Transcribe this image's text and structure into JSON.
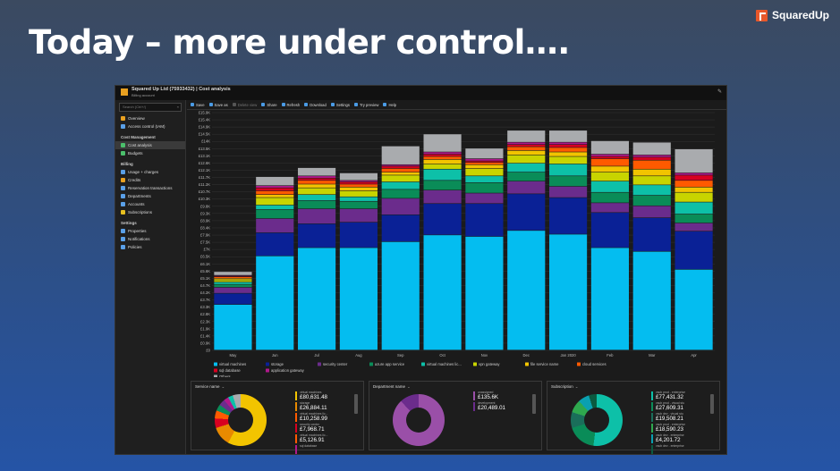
{
  "slide": {
    "title": "Today – more under control…."
  },
  "logo": {
    "text": "SquaredUp",
    "color": "#e8572a"
  },
  "window": {
    "title": "Squared Up Ltd (75933432) | Cost analysis",
    "subtitle": "Billing account",
    "pin_icon": "pin-icon"
  },
  "sidebar": {
    "search_placeholder": "Search (Ctrl+/)",
    "items": [
      {
        "label": "Overview",
        "icon": "overview-icon",
        "color": "#e8a020"
      },
      {
        "label": "Access control (IAM)",
        "icon": "people-icon",
        "color": "#5aa0e8"
      },
      {
        "section": "Cost Management"
      },
      {
        "label": "Cost analysis",
        "icon": "cost-analysis-icon",
        "color": "#4bbf6b",
        "active": true
      },
      {
        "label": "Budgets",
        "icon": "budgets-icon",
        "color": "#4bbf6b"
      },
      {
        "section": "Billing"
      },
      {
        "label": "Usage + charges",
        "icon": "usage-icon",
        "color": "#5aa0e8"
      },
      {
        "label": "Credits",
        "icon": "credits-icon",
        "color": "#e8a020"
      },
      {
        "label": "Reservation transactions",
        "icon": "reservation-icon",
        "color": "#5aa0e8"
      },
      {
        "label": "Departments",
        "icon": "departments-icon",
        "color": "#5aa0e8"
      },
      {
        "label": "Accounts",
        "icon": "accounts-icon",
        "color": "#5aa0e8"
      },
      {
        "label": "Subscriptions",
        "icon": "key-icon",
        "color": "#e8c020"
      },
      {
        "section": "Settings"
      },
      {
        "label": "Properties",
        "icon": "properties-icon",
        "color": "#5aa0e8"
      },
      {
        "label": "Notifications",
        "icon": "notifications-icon",
        "color": "#5aa0e8"
      },
      {
        "label": "Policies",
        "icon": "policies-icon",
        "color": "#5aa0e8"
      }
    ]
  },
  "toolbar": {
    "buttons": [
      {
        "label": "Save",
        "icon": "save-icon"
      },
      {
        "label": "Save as",
        "icon": "save-as-icon"
      },
      {
        "label": "Delete view",
        "icon": "delete-icon",
        "disabled": true
      },
      {
        "label": "Share",
        "icon": "share-icon"
      },
      {
        "label": "Refresh",
        "icon": "refresh-icon"
      },
      {
        "label": "Download",
        "icon": "download-icon"
      },
      {
        "label": "Settings",
        "icon": "gear-icon"
      },
      {
        "label": "Try preview",
        "icon": "preview-icon"
      },
      {
        "label": "Help",
        "icon": "help-icon"
      }
    ]
  },
  "chart_data": {
    "type": "bar",
    "stacked": true,
    "categories": [
      "May",
      "Jun",
      "Jul",
      "Aug",
      "Sep",
      "Oct",
      "Nov",
      "Dec",
      "Jan 2020",
      "Feb",
      "Mar",
      "Apr"
    ],
    "yticks": [
      "£0",
      "£0.9K",
      "£1.4K",
      "£1.9K",
      "£2.3K",
      "£2.8K",
      "£3.3K",
      "£3.7K",
      "£4.2K",
      "£4.7K",
      "£5.1K",
      "£5.6K",
      "£6.1K",
      "£6.5K",
      "£7K",
      "£7.5K",
      "£7.9K",
      "£8.4K",
      "£8.9K",
      "£9.3K",
      "£9.8K",
      "£10.3K",
      "£10.7K",
      "£11.2K",
      "£11.7K",
      "£12.1K",
      "£12.6K",
      "£13.1K",
      "£13.5K",
      "£14K",
      "£14.5K",
      "£14.9K",
      "£15.4K",
      "£15.9K"
    ],
    "ylim": [
      0,
      15900
    ],
    "grid": true,
    "legend_position": "bottom",
    "series": [
      {
        "name": "virtual machines",
        "color": "#04bdf0",
        "values": [
          3050,
          6300,
          6850,
          6850,
          7250,
          7700,
          7600,
          8000,
          7750,
          6850,
          6600,
          5400
        ]
      },
      {
        "name": "storage",
        "color": "#0a2196",
        "values": [
          750,
          1550,
          1600,
          1700,
          1800,
          2100,
          2200,
          2450,
          2450,
          2350,
          2250,
          2550
        ]
      },
      {
        "name": "security center",
        "color": "#6b2c8c",
        "values": [
          400,
          950,
          1000,
          900,
          1100,
          900,
          700,
          850,
          750,
          650,
          800,
          550
        ]
      },
      {
        "name": "azure app service",
        "color": "#0a8c58",
        "values": [
          200,
          600,
          550,
          500,
          600,
          650,
          700,
          600,
          700,
          700,
          700,
          600
        ]
      },
      {
        "name": "virtual machines lic...",
        "color": "#0dc0a8",
        "values": [
          150,
          300,
          400,
          300,
          500,
          750,
          450,
          600,
          800,
          750,
          700,
          800
        ]
      },
      {
        "name": "vpn gateway",
        "color": "#c8d400",
        "values": [
          150,
          500,
          450,
          400,
          450,
          350,
          500,
          550,
          500,
          600,
          600,
          650
        ]
      },
      {
        "name": "file service name",
        "color": "#f2c400",
        "values": [
          100,
          200,
          250,
          250,
          200,
          300,
          250,
          300,
          300,
          400,
          450,
          350
        ]
      },
      {
        "name": "cloud services",
        "color": "#ff5a00",
        "values": [
          100,
          250,
          250,
          200,
          250,
          200,
          150,
          250,
          300,
          500,
          600,
          450
        ]
      },
      {
        "name": "sql database",
        "color": "#d80020",
        "values": [
          50,
          200,
          150,
          150,
          150,
          150,
          100,
          150,
          200,
          150,
          200,
          350
        ]
      },
      {
        "name": "application gateway",
        "color": "#b0188c",
        "values": [
          50,
          150,
          150,
          100,
          100,
          150,
          150,
          150,
          150,
          150,
          150,
          150
        ]
      },
      {
        "name": "Others",
        "color": "#a9abae",
        "values": [
          250,
          600,
          550,
          500,
          1250,
          1200,
          700,
          800,
          800,
          900,
          850,
          1600
        ]
      }
    ]
  },
  "panels": [
    {
      "title": "Service name",
      "donut": [
        [
          "#f2c400",
          58
        ],
        [
          "#e88a00",
          12
        ],
        [
          "#d80020",
          6
        ],
        [
          "#ff5a00",
          5
        ],
        [
          "#0a8c58",
          4
        ],
        [
          "#6b2c8c",
          4
        ],
        [
          "#b0188c",
          3
        ],
        [
          "#0dc0a8",
          3
        ],
        [
          "#a9abae",
          5
        ]
      ],
      "items": [
        {
          "name": "virtual machines",
          "value": "£80,631.48",
          "color": "#f2c400"
        },
        {
          "name": "storage",
          "value": "£26,884.11",
          "color": "#e88a00"
        },
        {
          "name": "virtual machines lic...",
          "value": "£10,258.99",
          "color": "#ff5a00"
        },
        {
          "name": "security center",
          "value": "£7,968.71",
          "color": "#d80020"
        },
        {
          "name": "virtual machines lic...",
          "value": "£5,126.91",
          "color": "#ff5a00"
        },
        {
          "name": "sql database",
          "value": "",
          "color": "#b0188c"
        }
      ]
    },
    {
      "title": "Department name",
      "donut": [
        [
          "#9a4fa8",
          88
        ],
        [
          "#6b2c8c",
          12
        ]
      ],
      "items": [
        {
          "name": "unassigned",
          "value": "£135.6K",
          "color": "#9a4fa8"
        },
        {
          "name": "development",
          "value": "£20,489.01",
          "color": "#6b2c8c"
        }
      ]
    },
    {
      "title": "Subscription",
      "donut": [
        [
          "#0dc0a8",
          52
        ],
        [
          "#0a8c58",
          18
        ],
        [
          "#1a6e5a",
          10
        ],
        [
          "#2ea84e",
          8
        ],
        [
          "#0aa0b0",
          7
        ],
        [
          "#0a5a40",
          5
        ]
      ],
      "items": [
        {
          "name": "vsub prod - enterprise",
          "value": "£77,431.32",
          "color": "#0dc0a8"
        },
        {
          "name": "vsub prod - visual stu",
          "value": "£27,609.31",
          "color": "#0a8c58"
        },
        {
          "name": "vsub dev - visual stu",
          "value": "£19,508.21",
          "color": "#1a6e5a"
        },
        {
          "name": "vsub prod - enterprise",
          "value": "£18,590.23",
          "color": "#2ea84e"
        },
        {
          "name": "vsub dev - enterprise",
          "value": "£4,201.72",
          "color": "#0aa0b0"
        },
        {
          "name": "vsub dev - enterprise",
          "value": "",
          "color": "#0a5a40"
        }
      ]
    }
  ]
}
